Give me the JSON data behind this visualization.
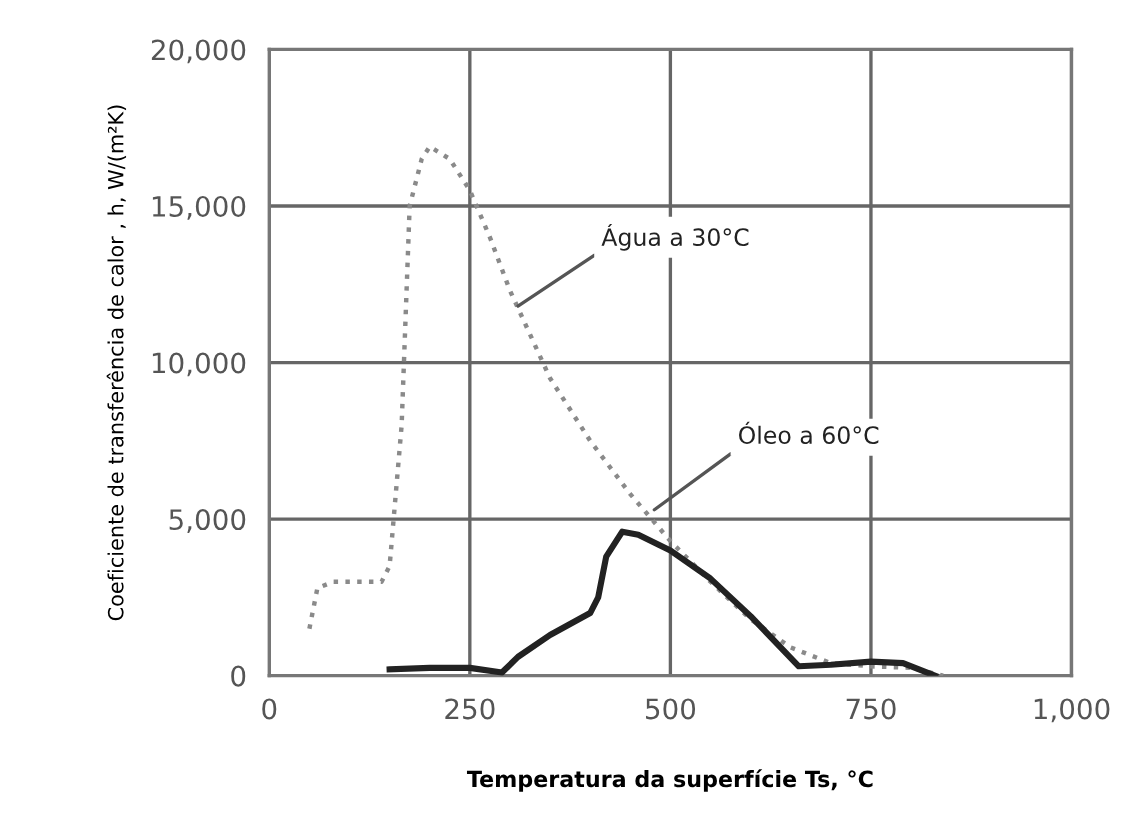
{
  "chart_data": {
    "type": "line",
    "xlabel": "Temperatura da superfície Ts, °C",
    "ylabel": "Coeficiente de transferência de calor , h, W/(m²K)",
    "xlim": [
      0,
      1000
    ],
    "xticks": [
      0,
      250,
      500,
      750,
      {
        "value": 1000,
        "label": "1,000"
      }
    ],
    "ylim": [
      0,
      20000
    ],
    "yticks": [
      0,
      {
        "value": 5000,
        "label": "5,000"
      },
      {
        "value": 10000,
        "label": "10,000"
      },
      {
        "value": 15000,
        "label": "15,000"
      },
      {
        "value": 20000,
        "label": "20,000"
      }
    ],
    "grid": true,
    "series": [
      {
        "color": "#8a8a8a",
        "line_style": "dotted",
        "x": [
          50,
          60,
          80,
          140,
          150,
          165,
          175,
          190,
          200,
          225,
          250,
          275,
          300,
          350,
          400,
          450,
          500,
          550,
          600,
          650,
          700,
          750,
          800,
          840
        ],
        "values": [
          1500,
          2800,
          3000,
          3000,
          3500,
          8000,
          15000,
          16500,
          16900,
          16500,
          15500,
          14000,
          12300,
          9500,
          7500,
          5800,
          4300,
          3000,
          1800,
          900,
          400,
          300,
          250,
          0
        ]
      },
      {
        "color": "#222222",
        "line_style": "solid",
        "x": [
          150,
          200,
          250,
          290,
          310,
          350,
          400,
          410,
          420,
          440,
          460,
          500,
          550,
          600,
          660,
          700,
          750,
          790,
          830
        ],
        "values": [
          200,
          250,
          250,
          100,
          600,
          1300,
          2000,
          2500,
          3800,
          4600,
          4500,
          4000,
          3100,
          1900,
          300,
          350,
          450,
          400,
          0
        ]
      }
    ],
    "annotations": [
      {
        "text": "Água a 30°C",
        "x": 310,
        "y": 11800
      },
      {
        "text": "Óleo a 60°C",
        "x": 480,
        "y": 5300
      }
    ]
  }
}
